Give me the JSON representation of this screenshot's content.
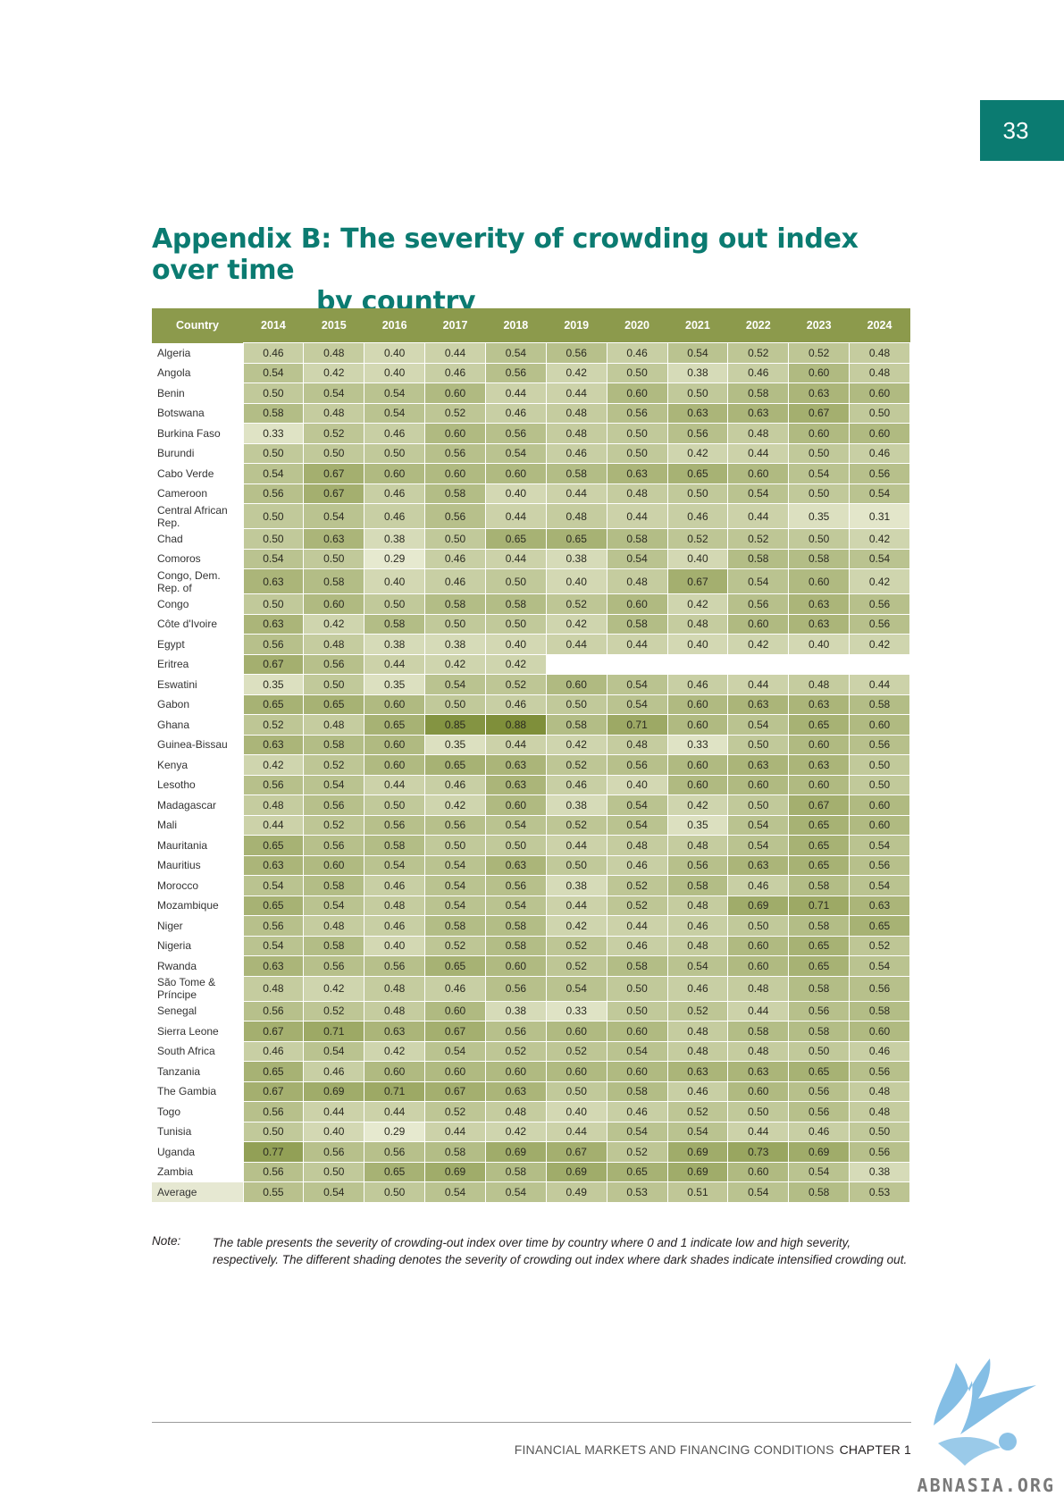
{
  "page_number": "33",
  "title": {
    "line1": "Appendix B: The severity of crowding out index over time",
    "line2": "by country"
  },
  "table": {
    "headers": [
      "Country",
      "2014",
      "2015",
      "2016",
      "2017",
      "2018",
      "2019",
      "2020",
      "2021",
      "2022",
      "2023",
      "2024"
    ],
    "rows": [
      {
        "country": "Algeria",
        "values": [
          "0.46",
          "0.48",
          "0.40",
          "0.44",
          "0.54",
          "0.56",
          "0.46",
          "0.54",
          "0.52",
          "0.52",
          "0.48"
        ]
      },
      {
        "country": "Angola",
        "values": [
          "0.54",
          "0.42",
          "0.40",
          "0.46",
          "0.56",
          "0.42",
          "0.50",
          "0.38",
          "0.46",
          "0.60",
          "0.48"
        ]
      },
      {
        "country": "Benin",
        "values": [
          "0.50",
          "0.54",
          "0.54",
          "0.60",
          "0.44",
          "0.44",
          "0.60",
          "0.50",
          "0.58",
          "0.63",
          "0.60"
        ]
      },
      {
        "country": "Botswana",
        "values": [
          "0.58",
          "0.48",
          "0.54",
          "0.52",
          "0.46",
          "0.48",
          "0.56",
          "0.63",
          "0.63",
          "0.67",
          "0.50"
        ]
      },
      {
        "country": "Burkina Faso",
        "values": [
          "0.33",
          "0.52",
          "0.46",
          "0.60",
          "0.56",
          "0.48",
          "0.50",
          "0.56",
          "0.48",
          "0.60",
          "0.60"
        ]
      },
      {
        "country": "Burundi",
        "values": [
          "0.50",
          "0.50",
          "0.50",
          "0.56",
          "0.54",
          "0.46",
          "0.50",
          "0.42",
          "0.44",
          "0.50",
          "0.46"
        ]
      },
      {
        "country": "Cabo Verde",
        "values": [
          "0.54",
          "0.67",
          "0.60",
          "0.60",
          "0.60",
          "0.58",
          "0.63",
          "0.65",
          "0.60",
          "0.54",
          "0.56"
        ]
      },
      {
        "country": "Cameroon",
        "values": [
          "0.56",
          "0.67",
          "0.46",
          "0.58",
          "0.40",
          "0.44",
          "0.48",
          "0.50",
          "0.54",
          "0.50",
          "0.54"
        ]
      },
      {
        "country": "Central African Rep.",
        "values": [
          "0.50",
          "0.54",
          "0.46",
          "0.56",
          "0.44",
          "0.48",
          "0.44",
          "0.46",
          "0.44",
          "0.35",
          "0.31"
        ]
      },
      {
        "country": "Chad",
        "values": [
          "0.50",
          "0.63",
          "0.38",
          "0.50",
          "0.65",
          "0.65",
          "0.58",
          "0.52",
          "0.52",
          "0.50",
          "0.42"
        ]
      },
      {
        "country": "Comoros",
        "values": [
          "0.54",
          "0.50",
          "0.29",
          "0.46",
          "0.44",
          "0.38",
          "0.54",
          "0.40",
          "0.58",
          "0.58",
          "0.54"
        ]
      },
      {
        "country": "Congo, Dem. Rep. of",
        "values": [
          "0.63",
          "0.58",
          "0.40",
          "0.46",
          "0.50",
          "0.40",
          "0.48",
          "0.67",
          "0.54",
          "0.60",
          "0.42"
        ]
      },
      {
        "country": "Congo",
        "values": [
          "0.50",
          "0.60",
          "0.50",
          "0.58",
          "0.58",
          "0.52",
          "0.60",
          "0.42",
          "0.56",
          "0.63",
          "0.56"
        ]
      },
      {
        "country": "Côte d'Ivoire",
        "values": [
          "0.63",
          "0.42",
          "0.58",
          "0.50",
          "0.50",
          "0.42",
          "0.58",
          "0.48",
          "0.60",
          "0.63",
          "0.56"
        ]
      },
      {
        "country": "Egypt",
        "values": [
          "0.56",
          "0.48",
          "0.38",
          "0.38",
          "0.40",
          "0.44",
          "0.44",
          "0.40",
          "0.42",
          "0.40",
          "0.42"
        ]
      },
      {
        "country": "Eritrea",
        "values": [
          "0.67",
          "0.56",
          "0.44",
          "0.42",
          "0.42",
          "",
          "",
          "",
          "",
          "",
          ""
        ]
      },
      {
        "country": "Eswatini",
        "values": [
          "0.35",
          "0.50",
          "0.35",
          "0.54",
          "0.52",
          "0.60",
          "0.54",
          "0.46",
          "0.44",
          "0.48",
          "0.44"
        ]
      },
      {
        "country": "Gabon",
        "values": [
          "0.65",
          "0.65",
          "0.60",
          "0.50",
          "0.46",
          "0.50",
          "0.54",
          "0.60",
          "0.63",
          "0.63",
          "0.58"
        ]
      },
      {
        "country": "Ghana",
        "values": [
          "0.52",
          "0.48",
          "0.65",
          "0.85",
          "0.88",
          "0.58",
          "0.71",
          "0.60",
          "0.54",
          "0.65",
          "0.60"
        ]
      },
      {
        "country": "Guinea-Bissau",
        "values": [
          "0.63",
          "0.58",
          "0.60",
          "0.35",
          "0.44",
          "0.42",
          "0.48",
          "0.33",
          "0.50",
          "0.60",
          "0.56"
        ]
      },
      {
        "country": "Kenya",
        "values": [
          "0.42",
          "0.52",
          "0.60",
          "0.65",
          "0.63",
          "0.52",
          "0.56",
          "0.60",
          "0.63",
          "0.63",
          "0.50"
        ]
      },
      {
        "country": "Lesotho",
        "values": [
          "0.56",
          "0.54",
          "0.44",
          "0.46",
          "0.63",
          "0.46",
          "0.40",
          "0.60",
          "0.60",
          "0.60",
          "0.50"
        ]
      },
      {
        "country": "Madagascar",
        "values": [
          "0.48",
          "0.56",
          "0.50",
          "0.42",
          "0.60",
          "0.38",
          "0.54",
          "0.42",
          "0.50",
          "0.67",
          "0.60"
        ]
      },
      {
        "country": "Mali",
        "values": [
          "0.44",
          "0.52",
          "0.56",
          "0.56",
          "0.54",
          "0.52",
          "0.54",
          "0.35",
          "0.54",
          "0.65",
          "0.60"
        ]
      },
      {
        "country": "Mauritania",
        "values": [
          "0.65",
          "0.56",
          "0.58",
          "0.50",
          "0.50",
          "0.44",
          "0.48",
          "0.48",
          "0.54",
          "0.65",
          "0.54"
        ]
      },
      {
        "country": "Mauritius",
        "values": [
          "0.63",
          "0.60",
          "0.54",
          "0.54",
          "0.63",
          "0.50",
          "0.46",
          "0.56",
          "0.63",
          "0.65",
          "0.56"
        ]
      },
      {
        "country": "Morocco",
        "values": [
          "0.54",
          "0.58",
          "0.46",
          "0.54",
          "0.56",
          "0.38",
          "0.52",
          "0.58",
          "0.46",
          "0.58",
          "0.54"
        ]
      },
      {
        "country": "Mozambique",
        "values": [
          "0.65",
          "0.54",
          "0.48",
          "0.54",
          "0.54",
          "0.44",
          "0.52",
          "0.48",
          "0.69",
          "0.71",
          "0.63"
        ]
      },
      {
        "country": "Niger",
        "values": [
          "0.56",
          "0.48",
          "0.46",
          "0.58",
          "0.58",
          "0.42",
          "0.44",
          "0.46",
          "0.50",
          "0.58",
          "0.65"
        ]
      },
      {
        "country": "Nigeria",
        "values": [
          "0.54",
          "0.58",
          "0.40",
          "0.52",
          "0.58",
          "0.52",
          "0.46",
          "0.48",
          "0.60",
          "0.65",
          "0.52"
        ]
      },
      {
        "country": "Rwanda",
        "values": [
          "0.63",
          "0.56",
          "0.56",
          "0.65",
          "0.60",
          "0.52",
          "0.58",
          "0.54",
          "0.60",
          "0.65",
          "0.54"
        ]
      },
      {
        "country": "São Tome & Príncipe",
        "values": [
          "0.48",
          "0.42",
          "0.48",
          "0.46",
          "0.56",
          "0.54",
          "0.50",
          "0.46",
          "0.48",
          "0.58",
          "0.56"
        ]
      },
      {
        "country": "Senegal",
        "values": [
          "0.56",
          "0.52",
          "0.48",
          "0.60",
          "0.38",
          "0.33",
          "0.50",
          "0.52",
          "0.44",
          "0.56",
          "0.58"
        ]
      },
      {
        "country": "Sierra Leone",
        "values": [
          "0.67",
          "0.71",
          "0.63",
          "0.67",
          "0.56",
          "0.60",
          "0.60",
          "0.48",
          "0.58",
          "0.58",
          "0.60"
        ]
      },
      {
        "country": "South Africa",
        "values": [
          "0.46",
          "0.54",
          "0.42",
          "0.54",
          "0.52",
          "0.52",
          "0.54",
          "0.48",
          "0.48",
          "0.50",
          "0.46"
        ]
      },
      {
        "country": "Tanzania",
        "values": [
          "0.65",
          "0.46",
          "0.60",
          "0.60",
          "0.60",
          "0.60",
          "0.60",
          "0.63",
          "0.63",
          "0.65",
          "0.56"
        ]
      },
      {
        "country": "The Gambia",
        "values": [
          "0.67",
          "0.69",
          "0.71",
          "0.67",
          "0.63",
          "0.50",
          "0.58",
          "0.46",
          "0.60",
          "0.56",
          "0.48"
        ]
      },
      {
        "country": "Togo",
        "values": [
          "0.56",
          "0.44",
          "0.44",
          "0.52",
          "0.48",
          "0.40",
          "0.46",
          "0.52",
          "0.50",
          "0.56",
          "0.48"
        ]
      },
      {
        "country": "Tunisia",
        "values": [
          "0.50",
          "0.40",
          "0.29",
          "0.44",
          "0.42",
          "0.44",
          "0.54",
          "0.54",
          "0.44",
          "0.46",
          "0.50"
        ]
      },
      {
        "country": "Uganda",
        "values": [
          "0.77",
          "0.56",
          "0.56",
          "0.58",
          "0.69",
          "0.67",
          "0.52",
          "0.69",
          "0.73",
          "0.69",
          "0.56"
        ]
      },
      {
        "country": "Zambia",
        "values": [
          "0.56",
          "0.50",
          "0.65",
          "0.69",
          "0.58",
          "0.69",
          "0.65",
          "0.69",
          "0.60",
          "0.54",
          "0.38"
        ]
      },
      {
        "country": "Average",
        "values": [
          "0.55",
          "0.54",
          "0.50",
          "0.54",
          "0.54",
          "0.49",
          "0.53",
          "0.51",
          "0.54",
          "0.58",
          "0.53"
        ]
      }
    ]
  },
  "note": {
    "label": "Note:",
    "text": "The table presents the severity of crowding-out index over time by country where 0 and 1 indicate low and high severity, respectively. The different shading denotes the severity of crowding out index where dark shades indicate intensified crowding out."
  },
  "footer": {
    "section": "FINANCIAL MARKETS AND FINANCING CONDITIONS",
    "chapter": "CHAPTER 1"
  },
  "watermark": "ABNASIA.ORG",
  "colors": {
    "accent": "#0b7b71",
    "header_bg": "#8c9a4c",
    "shade_low": "#e6e9cf",
    "shade_high": "#7f8f3a"
  },
  "icons": {
    "watermark_logo": "winged-creature-logo"
  }
}
